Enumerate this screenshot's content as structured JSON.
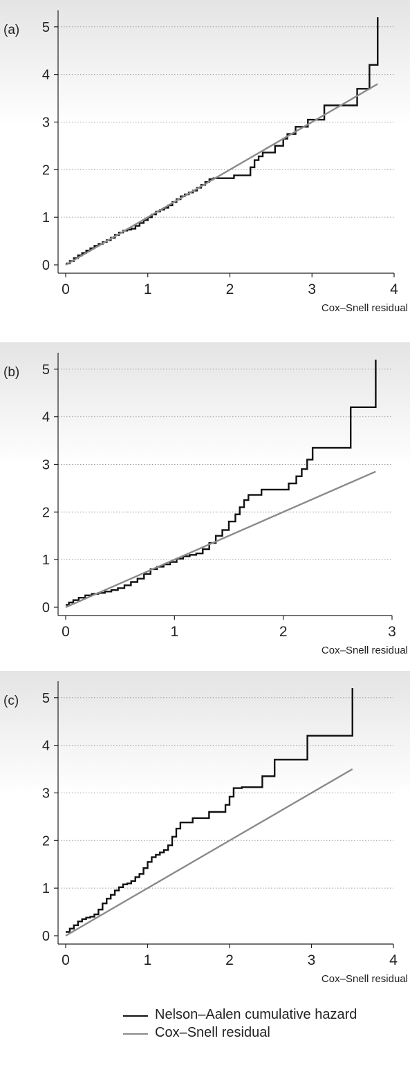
{
  "colors": {
    "nelson_aalen": "#111111",
    "cox_snell": "#8a8a8a",
    "grid": "#9a9a9a",
    "background_top": "#e4e4e4",
    "background_bottom": "#ffffff"
  },
  "legend": {
    "items": [
      {
        "label": "Nelson–Aalen cumulative hazard",
        "color": "#111111"
      },
      {
        "label": "Cox–Snell residual",
        "color": "#8a8a8a"
      }
    ],
    "placement": "bottom"
  },
  "chart_data": [
    {
      "type": "line",
      "panel_label": "(a)",
      "xlabel": "Cox–Snell residual",
      "ylabel": "",
      "xlim": [
        0,
        4
      ],
      "ylim": [
        0,
        5.2
      ],
      "xticks": [
        0,
        1,
        2,
        3,
        4
      ],
      "yticks": [
        0,
        1,
        2,
        3,
        4,
        5
      ],
      "grid": "horizontal dotted",
      "series": [
        {
          "name": "Nelson–Aalen cumulative hazard",
          "step": true,
          "x": [
            0.0,
            0.05,
            0.1,
            0.15,
            0.2,
            0.25,
            0.3,
            0.35,
            0.4,
            0.45,
            0.5,
            0.55,
            0.6,
            0.65,
            0.7,
            0.75,
            0.8,
            0.85,
            0.9,
            0.95,
            1.0,
            1.05,
            1.1,
            1.15,
            1.2,
            1.25,
            1.3,
            1.35,
            1.4,
            1.45,
            1.5,
            1.55,
            1.6,
            1.65,
            1.7,
            1.75,
            1.8,
            1.85,
            2.05,
            2.25,
            2.3,
            2.35,
            2.4,
            2.45,
            2.55,
            2.65,
            2.7,
            2.8,
            2.95,
            3.15,
            3.55,
            3.7,
            3.8,
            3.8
          ],
          "y": [
            0.03,
            0.08,
            0.14,
            0.2,
            0.25,
            0.3,
            0.35,
            0.4,
            0.44,
            0.48,
            0.52,
            0.57,
            0.63,
            0.68,
            0.72,
            0.74,
            0.76,
            0.82,
            0.88,
            0.94,
            1.0,
            1.06,
            1.12,
            1.16,
            1.2,
            1.25,
            1.32,
            1.38,
            1.44,
            1.48,
            1.52,
            1.56,
            1.62,
            1.68,
            1.74,
            1.8,
            1.82,
            1.82,
            1.88,
            2.05,
            2.2,
            2.28,
            2.36,
            2.36,
            2.5,
            2.65,
            2.75,
            2.9,
            3.05,
            3.35,
            3.7,
            4.2,
            4.2,
            5.2
          ]
        },
        {
          "name": "Cox–Snell residual",
          "step": false,
          "x": [
            0.0,
            3.8
          ],
          "y": [
            0.0,
            3.8
          ]
        }
      ]
    },
    {
      "type": "line",
      "panel_label": "(b)",
      "xlabel": "Cox–Snell residual",
      "ylabel": "",
      "xlim": [
        0,
        3
      ],
      "ylim": [
        0,
        5.2
      ],
      "xticks": [
        0,
        1,
        2,
        3
      ],
      "yticks": [
        0,
        1,
        2,
        3,
        4,
        5
      ],
      "grid": "horizontal dotted",
      "series": [
        {
          "name": "Nelson–Aalen cumulative hazard",
          "step": true,
          "x": [
            0.0,
            0.03,
            0.07,
            0.12,
            0.18,
            0.24,
            0.3,
            0.36,
            0.42,
            0.48,
            0.54,
            0.6,
            0.66,
            0.72,
            0.78,
            0.84,
            0.9,
            0.96,
            1.02,
            1.08,
            1.14,
            1.2,
            1.26,
            1.32,
            1.38,
            1.44,
            1.5,
            1.56,
            1.6,
            1.64,
            1.68,
            1.8,
            2.05,
            2.12,
            2.17,
            2.22,
            2.27,
            2.62,
            2.85,
            2.85
          ],
          "y": [
            0.05,
            0.1,
            0.15,
            0.2,
            0.25,
            0.28,
            0.3,
            0.33,
            0.36,
            0.4,
            0.46,
            0.53,
            0.6,
            0.7,
            0.8,
            0.85,
            0.9,
            0.95,
            1.02,
            1.07,
            1.1,
            1.13,
            1.22,
            1.35,
            1.5,
            1.62,
            1.8,
            1.95,
            2.1,
            2.25,
            2.36,
            2.47,
            2.6,
            2.75,
            2.9,
            3.1,
            3.35,
            4.2,
            4.2,
            5.2
          ]
        },
        {
          "name": "Cox–Snell residual",
          "step": false,
          "x": [
            0.0,
            2.85
          ],
          "y": [
            0.0,
            2.85
          ]
        }
      ]
    },
    {
      "type": "line",
      "panel_label": "(c)",
      "xlabel": "Cox–Snell residual",
      "ylabel": "",
      "xlim": [
        0,
        4
      ],
      "ylim": [
        0,
        5.2
      ],
      "xticks": [
        0,
        1,
        2,
        3,
        4
      ],
      "yticks": [
        0,
        1,
        2,
        3,
        4,
        5
      ],
      "grid": "horizontal dotted",
      "series": [
        {
          "name": "Nelson–Aalen cumulative hazard",
          "step": true,
          "x": [
            0.0,
            0.05,
            0.1,
            0.15,
            0.2,
            0.25,
            0.3,
            0.35,
            0.4,
            0.45,
            0.5,
            0.55,
            0.6,
            0.65,
            0.7,
            0.75,
            0.8,
            0.85,
            0.9,
            0.95,
            1.0,
            1.05,
            1.1,
            1.15,
            1.2,
            1.25,
            1.3,
            1.35,
            1.4,
            1.55,
            1.75,
            1.95,
            2.0,
            2.05,
            2.15,
            2.4,
            2.55,
            2.95,
            3.5,
            3.5
          ],
          "y": [
            0.08,
            0.15,
            0.22,
            0.3,
            0.35,
            0.38,
            0.4,
            0.45,
            0.55,
            0.68,
            0.78,
            0.86,
            0.95,
            1.02,
            1.08,
            1.1,
            1.15,
            1.23,
            1.3,
            1.42,
            1.55,
            1.65,
            1.7,
            1.75,
            1.8,
            1.9,
            2.08,
            2.25,
            2.38,
            2.47,
            2.6,
            2.75,
            2.92,
            3.1,
            3.12,
            3.35,
            3.7,
            4.2,
            4.2,
            5.2
          ]
        },
        {
          "name": "Cox–Snell residual",
          "step": false,
          "x": [
            0.0,
            3.5
          ],
          "y": [
            0.0,
            3.5
          ]
        }
      ]
    }
  ]
}
